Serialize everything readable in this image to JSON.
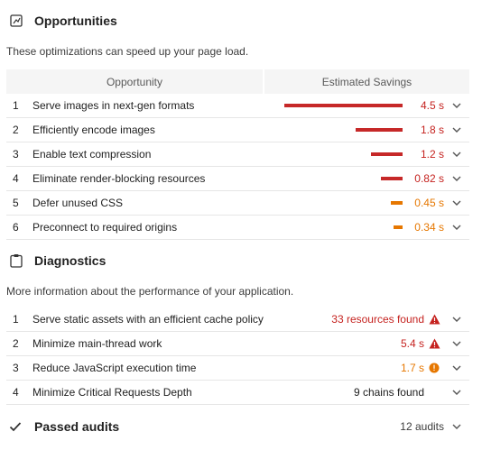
{
  "colors": {
    "red": "#c5221f",
    "orange": "#e67700",
    "bar_red": "#c62828",
    "bar_orange": "#e67700"
  },
  "opportunities": {
    "title": "Opportunities",
    "icon": "opportunity-icon",
    "description": "These optimizations can speed up your page load.",
    "col_opportunity": "Opportunity",
    "col_savings": "Estimated Savings",
    "items": [
      {
        "num": "1",
        "label": "Serve images in next-gen formats",
        "savings": "4.5 s",
        "fraction": 1.0,
        "severity": "red"
      },
      {
        "num": "2",
        "label": "Efficiently encode images",
        "savings": "1.8 s",
        "fraction": 0.4,
        "severity": "red"
      },
      {
        "num": "3",
        "label": "Enable text compression",
        "savings": "1.2 s",
        "fraction": 0.267,
        "severity": "red"
      },
      {
        "num": "4",
        "label": "Eliminate render-blocking resources",
        "savings": "0.82 s",
        "fraction": 0.182,
        "severity": "red"
      },
      {
        "num": "5",
        "label": "Defer unused CSS",
        "savings": "0.45 s",
        "fraction": 0.1,
        "severity": "orange"
      },
      {
        "num": "6",
        "label": "Preconnect to required origins",
        "savings": "0.34 s",
        "fraction": 0.076,
        "severity": "orange"
      }
    ]
  },
  "diagnostics": {
    "title": "Diagnostics",
    "icon": "clipboard-icon",
    "description": "More information about the performance of your application.",
    "items": [
      {
        "num": "1",
        "label": "Serve static assets with an efficient cache policy",
        "value": "33 resources found",
        "severity": "red",
        "icon": "warning-triangle-icon"
      },
      {
        "num": "2",
        "label": "Minimize main-thread work",
        "value": "5.4 s",
        "severity": "red",
        "icon": "warning-triangle-icon"
      },
      {
        "num": "3",
        "label": "Reduce JavaScript execution time",
        "value": "1.7 s",
        "severity": "orange",
        "icon": "info-circle-icon"
      },
      {
        "num": "4",
        "label": "Minimize Critical Requests Depth",
        "value": "9 chains found",
        "severity": "neutral",
        "icon": ""
      }
    ]
  },
  "passed": {
    "title": "Passed audits",
    "count": "12 audits",
    "icon": "checkmark-icon"
  }
}
